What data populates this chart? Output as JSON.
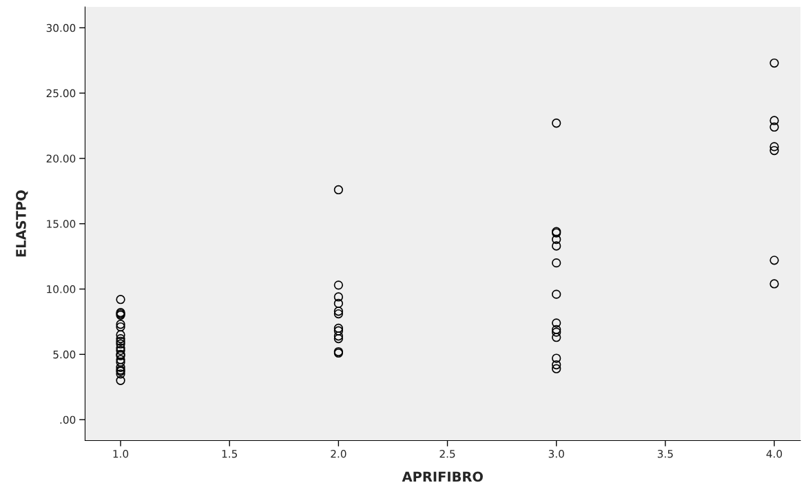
{
  "chart_data": {
    "type": "scatter",
    "xlabel": "APRIFIBRO",
    "ylabel": "ELASTPQ",
    "marker": "circle",
    "grid": false,
    "xlim": [
      0.837,
      4.12
    ],
    "ylim": [
      -1.6,
      31.6
    ],
    "xticks": [
      {
        "value": 1.0,
        "label": "1.0"
      },
      {
        "value": 1.5,
        "label": "1.5"
      },
      {
        "value": 2.0,
        "label": "2.0"
      },
      {
        "value": 2.5,
        "label": "2.5"
      },
      {
        "value": 3.0,
        "label": "3.0"
      },
      {
        "value": 3.5,
        "label": "3.5"
      },
      {
        "value": 4.0,
        "label": "4.0"
      }
    ],
    "yticks": [
      {
        "value": 0,
        "label": ".00"
      },
      {
        "value": 5,
        "label": "5.00"
      },
      {
        "value": 10,
        "label": "10.00"
      },
      {
        "value": 15,
        "label": "15.00"
      },
      {
        "value": 20,
        "label": "20.00"
      },
      {
        "value": 25,
        "label": "25.00"
      },
      {
        "value": 30,
        "label": "30.00"
      }
    ],
    "series": [
      {
        "color": "#000000",
        "x": [
          1,
          1,
          1,
          1,
          1,
          1,
          1,
          1,
          1,
          1,
          1,
          1,
          1,
          1,
          1,
          1,
          1,
          1,
          1,
          1,
          1,
          2,
          2,
          2,
          2,
          2,
          2,
          2,
          2,
          2,
          2,
          2,
          2,
          3,
          3,
          3,
          3,
          3,
          3,
          3,
          3,
          3,
          3,
          3,
          3,
          3,
          3,
          4,
          4,
          4,
          4,
          4,
          4,
          4
        ],
        "values": [
          9.2,
          8.2,
          8.0,
          8.1,
          7.3,
          7.1,
          6.5,
          6.2,
          6.0,
          5.8,
          5.5,
          5.3,
          5.0,
          4.9,
          4.6,
          4.4,
          4.0,
          3.8,
          3.7,
          3.5,
          3.0,
          17.6,
          10.3,
          9.4,
          8.9,
          8.3,
          8.1,
          7.0,
          6.8,
          6.4,
          6.2,
          5.2,
          5.1,
          22.7,
          14.4,
          14.3,
          13.8,
          13.3,
          12.0,
          9.6,
          7.4,
          6.9,
          6.7,
          6.3,
          4.7,
          4.2,
          3.9,
          27.3,
          22.9,
          22.4,
          20.9,
          20.6,
          12.2,
          10.4
        ]
      }
    ]
  }
}
